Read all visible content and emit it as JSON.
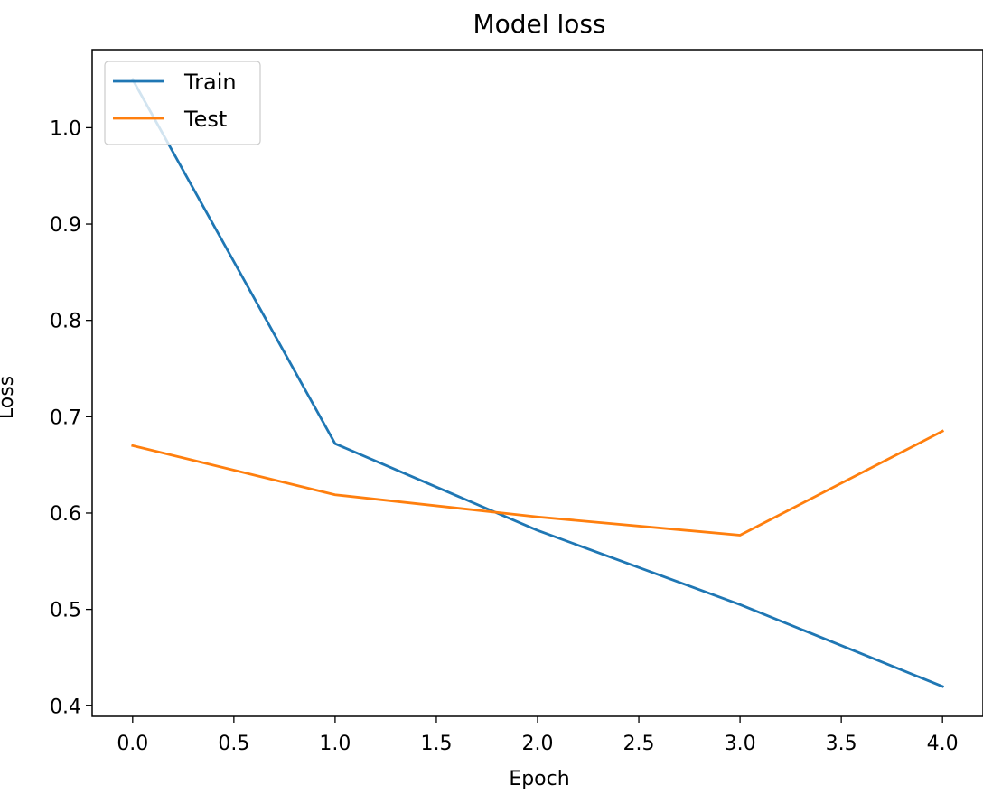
{
  "chart_data": {
    "type": "line",
    "title": "Model loss",
    "xlabel": "Epoch",
    "ylabel": "Loss",
    "x": [
      0,
      1,
      2,
      3,
      4
    ],
    "series": [
      {
        "name": "Train",
        "color": "#1f77b4",
        "values": [
          1.05,
          0.672,
          0.582,
          0.505,
          0.42
        ]
      },
      {
        "name": "Test",
        "color": "#ff7f0e",
        "values": [
          0.67,
          0.619,
          0.596,
          0.577,
          0.685
        ]
      }
    ],
    "xlim": [
      -0.2,
      4.2
    ],
    "ylim": [
      0.389,
      1.081
    ],
    "xticks": [
      "0.0",
      "0.5",
      "1.0",
      "1.5",
      "2.0",
      "2.5",
      "3.0",
      "3.5",
      "4.0"
    ],
    "xtick_values": [
      0,
      0.5,
      1,
      1.5,
      2,
      2.5,
      3,
      3.5,
      4
    ],
    "yticks": [
      "0.4",
      "0.5",
      "0.6",
      "0.7",
      "0.8",
      "0.9",
      "1.0"
    ],
    "ytick_values": [
      0.4,
      0.5,
      0.6,
      0.7,
      0.8,
      0.9,
      1.0
    ],
    "grid": false,
    "legend_position": "top-left"
  }
}
